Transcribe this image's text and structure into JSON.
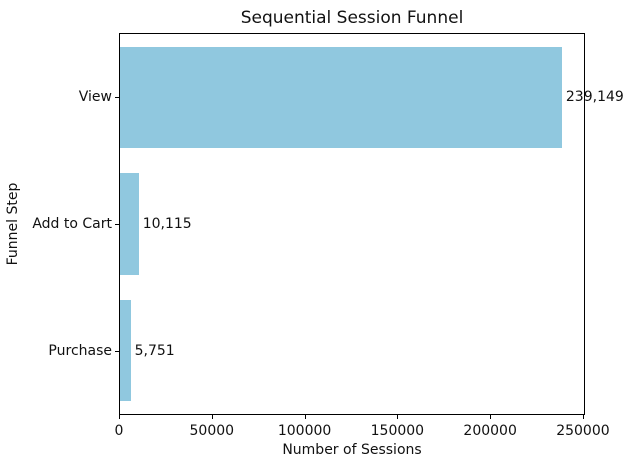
{
  "chart_data": {
    "type": "bar",
    "orientation": "horizontal",
    "title": "Sequential Session Funnel",
    "xlabel": "Number of Sessions",
    "ylabel": "Funnel Step",
    "categories": [
      "View",
      "Add to Cart",
      "Purchase"
    ],
    "values": [
      239149,
      10115,
      5751
    ],
    "value_labels": [
      "239,149",
      "10,115",
      "5,751"
    ],
    "xlim": [
      0,
      251106
    ],
    "xticks": [
      0,
      50000,
      100000,
      150000,
      200000,
      250000
    ],
    "xtick_labels": [
      "0",
      "50000",
      "100000",
      "150000",
      "200000",
      "250000"
    ],
    "bar_color": "#90C8DF",
    "grid": false,
    "legend": null
  }
}
